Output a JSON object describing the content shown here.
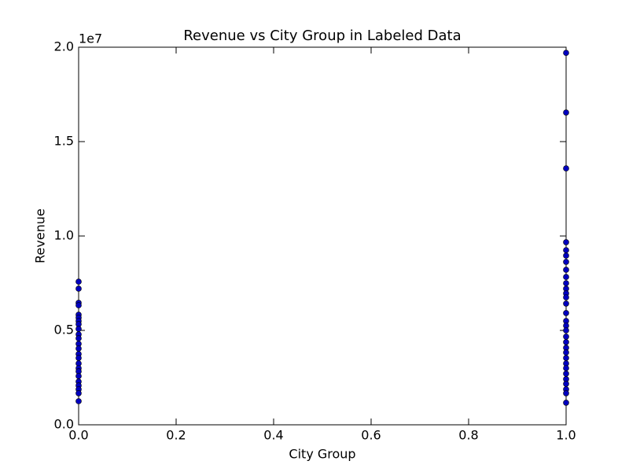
{
  "chart_data": {
    "type": "scatter",
    "title": "Revenue vs City Group in Labeled Data",
    "xlabel": "City Group",
    "ylabel": "Revenue",
    "y_offset_label": "1e7",
    "color": "#0000bf",
    "x": [
      0,
      0,
      0,
      0,
      0,
      0,
      0,
      0,
      0,
      0,
      0,
      0,
      0,
      0,
      0,
      0,
      0,
      0,
      0,
      0,
      0,
      0,
      0,
      0,
      1,
      1,
      1,
      1,
      1,
      1,
      1,
      1,
      1,
      1,
      1,
      1,
      1,
      1,
      1,
      1,
      1,
      1,
      1,
      1,
      1,
      1,
      1,
      1,
      1,
      1,
      1,
      1,
      1,
      1,
      1
    ],
    "values": [
      7580000,
      7210000,
      6460000,
      6330000,
      5830000,
      5670000,
      5500000,
      5330000,
      5080000,
      4790000,
      4580000,
      4290000,
      4040000,
      3750000,
      3540000,
      3250000,
      3000000,
      2830000,
      2580000,
      2290000,
      2080000,
      1880000,
      1670000,
      1250000,
      19700000,
      16540000,
      13580000,
      9670000,
      9250000,
      8960000,
      8630000,
      8210000,
      7830000,
      7500000,
      7210000,
      6960000,
      6750000,
      6420000,
      5920000,
      5500000,
      5250000,
      5000000,
      4670000,
      4380000,
      4080000,
      3830000,
      3540000,
      3250000,
      3000000,
      2710000,
      2420000,
      2170000,
      1880000,
      1670000,
      1170000
    ],
    "xlim": [
      0,
      1
    ],
    "xticks": [
      {
        "value": 0,
        "label": "0.0"
      },
      0.2,
      0.4,
      0.6,
      0.8,
      {
        "value": 1,
        "label": "1.0"
      }
    ],
    "ylim": [
      0,
      20000000
    ],
    "yticks": [
      {
        "value": 0,
        "label": "0.0"
      },
      {
        "value": 5000000,
        "label": "0.5"
      },
      {
        "value": 10000000,
        "label": "1.0"
      },
      {
        "value": 15000000,
        "label": "1.5"
      },
      {
        "value": 20000000,
        "label": "2.0"
      }
    ]
  }
}
